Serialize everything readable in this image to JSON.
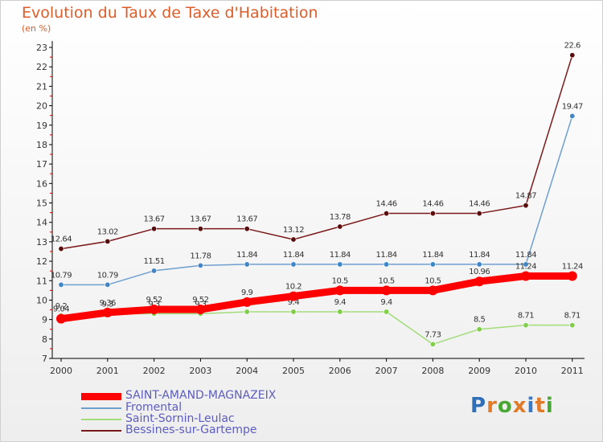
{
  "title": "Evolution du Taux de Taxe d'Habitation",
  "unit_label": "(en %)",
  "logo": {
    "letters": [
      "P",
      "r",
      "o",
      "x",
      "i",
      "t",
      "i"
    ],
    "colors": [
      "#2f6fb8",
      "#e07b2a",
      "#49a833",
      "#e07b2a",
      "#3a78c2",
      "#e07b2a",
      "#49a833"
    ]
  },
  "chart_data": {
    "type": "line",
    "x": [
      "2000",
      "2001",
      "2002",
      "2003",
      "2004",
      "2005",
      "2006",
      "2007",
      "2008",
      "2009",
      "2010",
      "2011"
    ],
    "ylim": [
      7,
      23
    ],
    "yticks": [
      "7",
      "8",
      "9",
      "10",
      "11",
      "12",
      "13",
      "14",
      "15",
      "16",
      "17",
      "18",
      "19",
      "20",
      "21",
      "22",
      "23"
    ],
    "grid": false,
    "legend_position": "bottom-left",
    "series": [
      {
        "name": "Bessines-sur-Gartempe",
        "color": "#7b1a1a",
        "point_color": "#5a0d0d",
        "values": [
          12.64,
          13.02,
          13.67,
          13.67,
          13.67,
          13.12,
          13.78,
          14.46,
          14.46,
          14.46,
          14.87,
          22.6
        ],
        "labels": [
          "12.64",
          "13.02",
          "13.67",
          "13.67",
          "13.67",
          "13.12",
          "13.78",
          "14.46",
          "14.46",
          "14.46",
          "14.87",
          "22.6"
        ]
      },
      {
        "name": "Fromental",
        "color": "#6d9fcf",
        "point_color": "#3f86c8",
        "values": [
          10.79,
          10.79,
          11.51,
          11.78,
          11.84,
          11.84,
          11.84,
          11.84,
          11.84,
          11.84,
          11.84,
          19.47
        ],
        "labels": [
          "10.79",
          "10.79",
          "11.51",
          "11.78",
          "11.84",
          "11.84",
          "11.84",
          "11.84",
          "11.84",
          "11.84",
          "11.84",
          "19.47"
        ]
      },
      {
        "name": "Saint-Sornin-Leulac",
        "color": "#a3dc7a",
        "point_color": "#7fcd48",
        "values": [
          9.2,
          9.3,
          9.3,
          9.3,
          9.4,
          9.4,
          9.4,
          9.4,
          7.73,
          8.5,
          8.71,
          8.71
        ],
        "labels": [
          "9.2",
          "9.3",
          "9.3",
          "9.3",
          "9.4",
          "9.4",
          "9.4",
          "9.4",
          "7.73",
          "8.5",
          "8.71",
          "8.71"
        ]
      },
      {
        "name": "SAINT-AMAND-MAGNAZEIX",
        "color": "#ff0000",
        "point_color": "#ff0000",
        "values": [
          9.04,
          9.36,
          9.52,
          9.52,
          9.9,
          10.2,
          10.5,
          10.5,
          10.5,
          10.96,
          11.24,
          11.24
        ],
        "labels": [
          "9.04",
          "9.36",
          "9.52",
          "9.52",
          "9.9",
          "10.2",
          "10.5",
          "10.5",
          "10.5",
          "10.96",
          "11.24",
          "11.24"
        ]
      }
    ]
  }
}
